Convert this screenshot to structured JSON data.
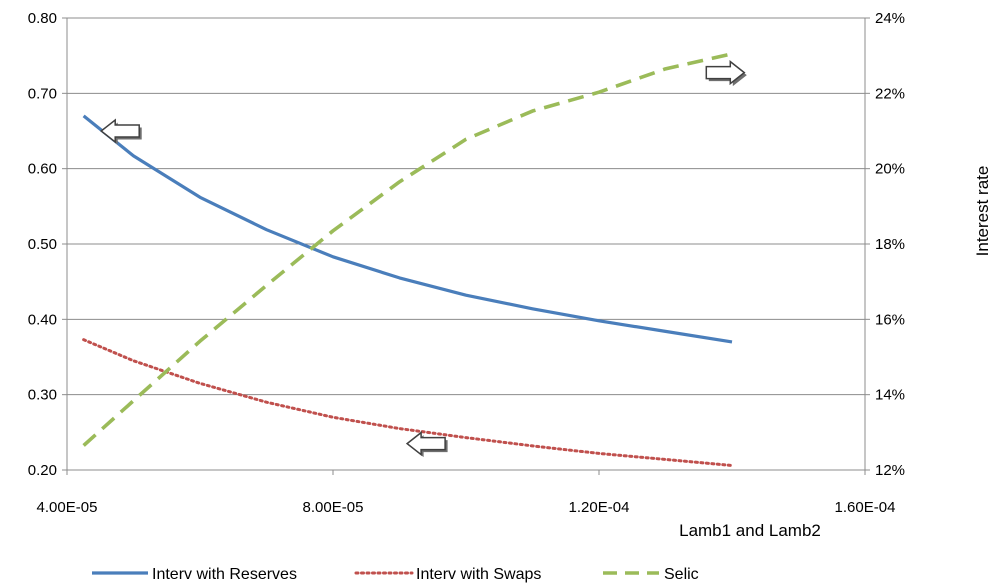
{
  "chart_data": {
    "type": "line",
    "xlabel": "Lamb1 and Lamb2",
    "y2label": "Interest rate",
    "ylabel": "",
    "x_ticks": [
      "4.00E-05",
      "8.00E-05",
      "1.20E-04",
      "1.60E-04"
    ],
    "y_ticks": [
      "0.20",
      "0.30",
      "0.40",
      "0.50",
      "0.60",
      "0.70",
      "0.80"
    ],
    "y2_ticks": [
      "12%",
      "14%",
      "16%",
      "18%",
      "20%",
      "22%",
      "24%"
    ],
    "xlim": [
      4e-05,
      0.00016
    ],
    "ylim": [
      0.2,
      0.8
    ],
    "y2lim": [
      0.12,
      0.24
    ],
    "grid": "horizontal",
    "legend_position": "bottom",
    "x": [
      4.25e-05,
      5e-05,
      6e-05,
      7e-05,
      8e-05,
      9e-05,
      0.0001,
      0.00011,
      0.00012,
      0.00013,
      0.00014
    ],
    "series": [
      {
        "name": "Interv with Reserves",
        "axis": "left",
        "color": "#4a7ebb",
        "style": "solid",
        "values": [
          0.67,
          0.617,
          0.562,
          0.519,
          0.483,
          0.455,
          0.432,
          0.414,
          0.398,
          0.384,
          0.37
        ]
      },
      {
        "name": "Interv with Swaps",
        "axis": "left",
        "color": "#c0504d",
        "style": "dotted",
        "values": [
          0.373,
          0.345,
          0.315,
          0.29,
          0.27,
          0.255,
          0.243,
          0.232,
          0.222,
          0.214,
          0.206
        ]
      },
      {
        "name": "Selic",
        "axis": "right",
        "color": "#9bbb59",
        "style": "dashed",
        "values": [
          0.1265,
          0.1384,
          0.1542,
          0.169,
          0.1835,
          0.1965,
          0.2078,
          0.2153,
          0.2203,
          0.2265,
          0.2305
        ]
      }
    ],
    "annotations": [
      {
        "type": "arrow",
        "direction": "left",
        "x": 4.8e-05,
        "y": 0.65,
        "meaning": "left axis"
      },
      {
        "type": "arrow",
        "direction": "right",
        "x": 0.000139,
        "y2": 0.2255,
        "meaning": "right axis"
      },
      {
        "type": "arrow",
        "direction": "left",
        "x": 9.4e-05,
        "y": 0.235,
        "meaning": "left axis"
      }
    ]
  }
}
